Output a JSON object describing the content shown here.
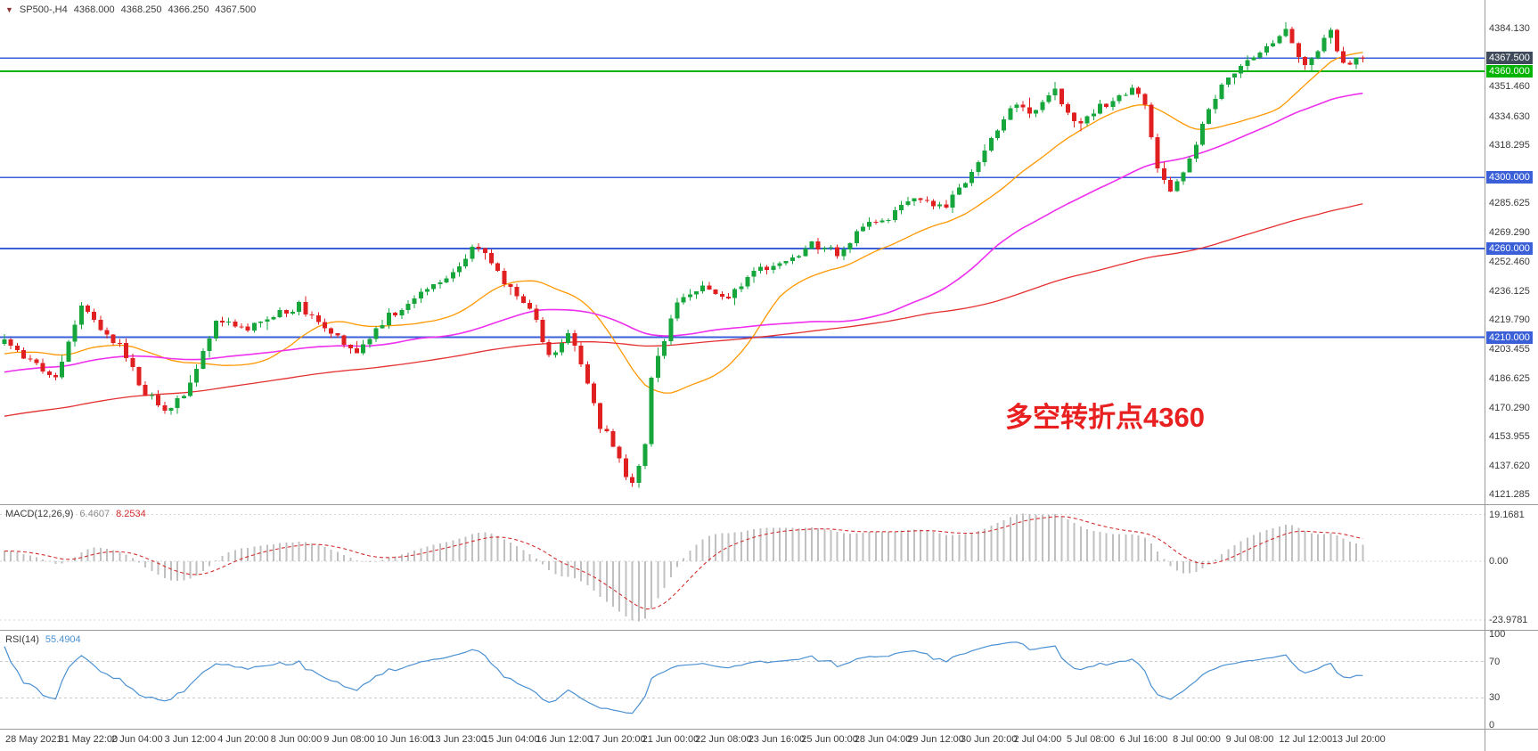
{
  "header": {
    "collapse_icon": "▼",
    "symbol": "SP500-,H4",
    "open": "4368.000",
    "high": "4368.250",
    "low": "4366.250",
    "close": "4367.500"
  },
  "annotation": {
    "text": "多空转折点4360",
    "color": "#e82020"
  },
  "indicators": {
    "macd": {
      "name": "MACD(12,26,9)",
      "value_main": "6.4607",
      "value_signal": "8.2534",
      "scale_values": [
        19.1681,
        0,
        -23.9781
      ],
      "scale_labels": [
        "19.1681",
        "0.00",
        "-23.9781"
      ],
      "histogram_color": "#c0c0c0",
      "signal_color": "#d32f2f"
    },
    "rsi": {
      "name": "RSI(14)",
      "value": "55.4904",
      "scale_values": [
        100,
        70,
        30,
        0
      ],
      "scale_labels": [
        "100",
        "70",
        "30",
        "0"
      ],
      "level_lines": [
        70,
        30
      ],
      "line_color": "#4a90d2"
    }
  },
  "chart_data": {
    "type": "candlestick",
    "instrument": "SP500-",
    "timeframe": "H4",
    "title": "SP500- H4 candlestick chart with MACD and RSI",
    "current_ohlc": {
      "open": 4368.0,
      "high": 4368.25,
      "low": 4366.25,
      "close": 4367.5
    },
    "bars": 213,
    "bar_spacing": 7.19,
    "main_y_range": [
      4115.8,
      4400.2
    ],
    "price_ticks": [
      4384.13,
      4351.46,
      4334.63,
      4318.295,
      4285.625,
      4269.29,
      4252.46,
      4236.125,
      4219.79,
      4203.455,
      4186.625,
      4170.29,
      4153.955,
      4137.62,
      4121.285
    ],
    "horizontal_lines": [
      {
        "price": 4367.5,
        "line": "#3a5fd9",
        "badge": "#3f4a5a",
        "width": 1.4
      },
      {
        "price": 4360.0,
        "line": "#00b400",
        "badge": "#00b400",
        "width": 2.2
      },
      {
        "price": 4300.0,
        "line": "#3a5fd9",
        "badge": "#3a5fd9",
        "width": 1.6
      },
      {
        "price": 4260.0,
        "line": "#3a5fd9",
        "badge": "#3a5fd9",
        "width": 1.6
      },
      {
        "price": 4210.0,
        "line": "#3a5fd9",
        "badge": "#3a5fd9",
        "width": 1.6
      }
    ],
    "candle_colors": {
      "bull": "#16a63c",
      "bear": "#e02020"
    },
    "moving_averages": [
      {
        "period": 21,
        "color": "#ff9800",
        "width": 1.3
      },
      {
        "period": 55,
        "color": "#ee30ee",
        "width": 1.6
      },
      {
        "period": 135,
        "color": "#e53030",
        "width": 1.3
      }
    ],
    "prehistory_bars": 140,
    "prehistory_start": 4120,
    "last_close": 4367.5,
    "macd_y_range": [
      23,
      -28
    ],
    "macd_draw_extremes": [
      19.5,
      -24.5
    ],
    "price_path_anchors": [
      [
        0,
        4207
      ],
      [
        4,
        4196
      ],
      [
        8,
        4186
      ],
      [
        12,
        4226
      ],
      [
        15,
        4215
      ],
      [
        18,
        4205
      ],
      [
        22,
        4178
      ],
      [
        25,
        4170
      ],
      [
        28,
        4176
      ],
      [
        33,
        4220
      ],
      [
        38,
        4215
      ],
      [
        41,
        4220
      ],
      [
        46,
        4228
      ],
      [
        50,
        4214
      ],
      [
        55,
        4202
      ],
      [
        60,
        4222
      ],
      [
        65,
        4234
      ],
      [
        71,
        4248
      ],
      [
        73,
        4262
      ],
      [
        75,
        4256
      ],
      [
        78,
        4240
      ],
      [
        82,
        4228
      ],
      [
        85,
        4198
      ],
      [
        88,
        4214
      ],
      [
        91,
        4183
      ],
      [
        93,
        4160
      ],
      [
        95,
        4150
      ],
      [
        97,
        4133
      ],
      [
        98,
        4128
      ],
      [
        100,
        4150
      ],
      [
        101,
        4185
      ],
      [
        103,
        4210
      ],
      [
        105,
        4228
      ],
      [
        109,
        4238
      ],
      [
        113,
        4234
      ],
      [
        118,
        4248
      ],
      [
        122,
        4252
      ],
      [
        126,
        4262
      ],
      [
        130,
        4258
      ],
      [
        134,
        4272
      ],
      [
        138,
        4278
      ],
      [
        142,
        4288
      ],
      [
        147,
        4284
      ],
      [
        150,
        4298
      ],
      [
        154,
        4322
      ],
      [
        157,
        4340
      ],
      [
        160,
        4337
      ],
      [
        164,
        4348
      ],
      [
        167,
        4330
      ],
      [
        171,
        4340
      ],
      [
        176,
        4350
      ],
      [
        178,
        4342
      ],
      [
        180,
        4306
      ],
      [
        182,
        4291
      ],
      [
        185,
        4310
      ],
      [
        187,
        4330
      ],
      [
        190,
        4352
      ],
      [
        192,
        4360
      ],
      [
        195,
        4368
      ],
      [
        198,
        4376
      ],
      [
        200,
        4382
      ],
      [
        203,
        4362
      ],
      [
        205,
        4372
      ],
      [
        207,
        4382
      ],
      [
        209,
        4363
      ],
      [
        211,
        4366
      ],
      [
        212,
        4367.5
      ]
    ],
    "time_labels": [
      "28 May 2021",
      "31 May 22:00",
      "2 Jun 04:00",
      "3 Jun 12:00",
      "4 Jun 20:00",
      "8 Jun 00:00",
      "9 Jun 08:00",
      "10 Jun 16:00",
      "13 Jun 23:00",
      "15 Jun 04:00",
      "16 Jun 12:00",
      "17 Jun 20:00",
      "21 Jun 00:00",
      "22 Jun 08:00",
      "23 Jun 16:00",
      "25 Jun 00:00",
      "28 Jun 04:00",
      "29 Jun 12:00",
      "30 Jun 20:00",
      "2 Jul 04:00",
      "5 Jul 08:00",
      "6 Jul 16:00",
      "8 Jul 00:00",
      "9 Jul 08:00",
      "12 Jul 12:00",
      "13 Jul 20:00"
    ],
    "time_label_start_x": 6,
    "time_label_spacing": 59.55
  }
}
